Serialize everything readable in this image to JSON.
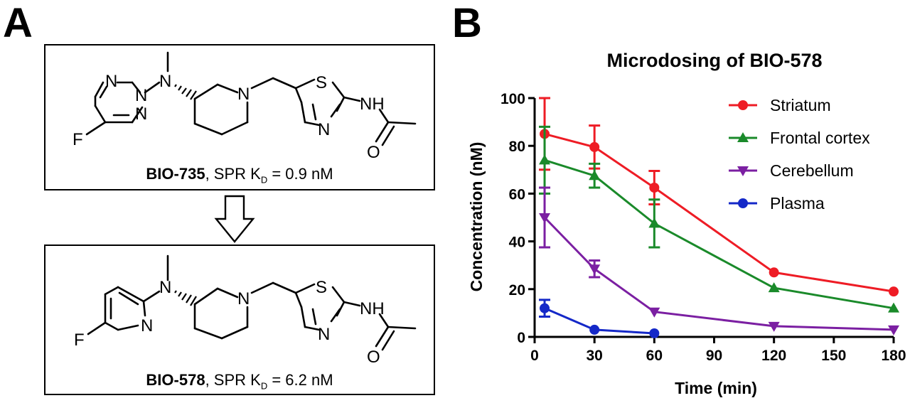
{
  "panels": {
    "a": "A",
    "b": "B"
  },
  "compound1": {
    "name": "BIO-735",
    "assay": ", SPR K",
    "sub": "D",
    "value": " = 0.9 nM"
  },
  "compound2": {
    "name": "BIO-578",
    "assay": ", SPR K",
    "sub": "D",
    "value": " = 6.2 nM"
  },
  "atoms": {
    "F": "F",
    "N": "N",
    "S": "S",
    "O": "O",
    "NH": "NH"
  },
  "chart_data": {
    "type": "line",
    "title": "Microdosing of BIO-578",
    "xlabel": "Time (min)",
    "ylabel": "Concentration (nM)",
    "xlim": [
      0,
      180
    ],
    "ylim": [
      0,
      100
    ],
    "xticks": [
      0,
      30,
      60,
      90,
      120,
      150,
      180
    ],
    "yticks": [
      0,
      20,
      40,
      60,
      80,
      100
    ],
    "grid": false,
    "legend": "top-right",
    "series": [
      {
        "name": "Striatum",
        "color": "#ee1c25",
        "marker": "circle",
        "x": [
          5,
          30,
          60,
          120,
          180
        ],
        "y": [
          85,
          79.5,
          62.5,
          27,
          19
        ],
        "err": [
          15,
          9,
          7,
          0,
          0
        ]
      },
      {
        "name": "Frontal cortex",
        "color": "#1a8a2a",
        "marker": "triangle-up",
        "x": [
          5,
          30,
          60,
          120,
          180
        ],
        "y": [
          74,
          67.5,
          47.5,
          20.5,
          12
        ],
        "err": [
          14,
          5,
          10,
          0,
          0
        ]
      },
      {
        "name": "Cerebellum",
        "color": "#7b1fa2",
        "marker": "triangle-down",
        "x": [
          5,
          30,
          60,
          120,
          180
        ],
        "y": [
          50,
          28.5,
          10.5,
          4.5,
          3
        ],
        "err": [
          12.5,
          3.5,
          0,
          0,
          0
        ]
      },
      {
        "name": "Plasma",
        "color": "#1428c8",
        "marker": "circle",
        "x": [
          5,
          30,
          60
        ],
        "y": [
          12,
          3,
          1.5
        ],
        "err": [
          3.5,
          0,
          0
        ]
      }
    ]
  }
}
